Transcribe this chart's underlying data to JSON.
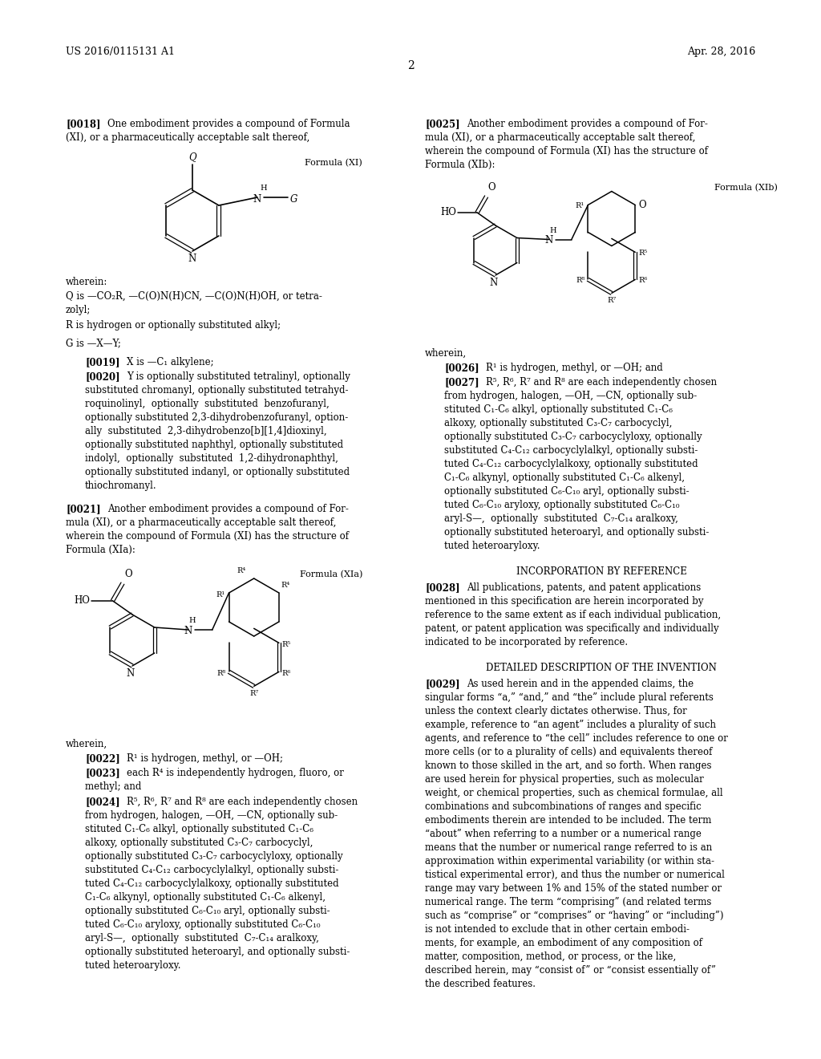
{
  "bg_color": "#ffffff",
  "header_left": "US 2016/0115131 A1",
  "header_right": "Apr. 28, 2016",
  "page_num": "2",
  "font_size_body": 8.5,
  "font_size_header": 9.0,
  "font_size_formula_label": 8.0,
  "font_size_section_title": 8.5,
  "font_size_chem": 8.5,
  "font_size_chem_small": 7.0
}
